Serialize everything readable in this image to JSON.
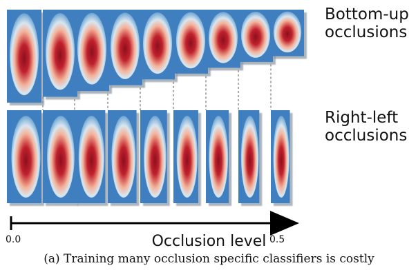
{
  "figure": {
    "row_labels": {
      "top": [
        "Bottom-up",
        "occlusions"
      ],
      "bottom": [
        "Right-left",
        "occlusions"
      ]
    },
    "axis": {
      "title": "Occlusion level",
      "tick_min": "0.0",
      "tick_max": "0.5"
    },
    "caption": "(a) Training many occlusion specific classifiers is costly",
    "rows": {
      "bottom_up": {
        "occlusion_levels": [
          0.0,
          0.0625,
          0.125,
          0.1875,
          0.25,
          0.3125,
          0.375,
          0.4375,
          0.5
        ]
      },
      "right_left": {
        "occlusion_levels": [
          0.0,
          0.0625,
          0.125,
          0.1875,
          0.25,
          0.3125,
          0.375,
          0.4375,
          0.5
        ]
      }
    },
    "colors": {
      "heat_low": "#4a86c2",
      "heat_mid": "#f4b29a",
      "heat_high": "#8b0f1f",
      "frame_shadow": "#7a8a99"
    }
  }
}
